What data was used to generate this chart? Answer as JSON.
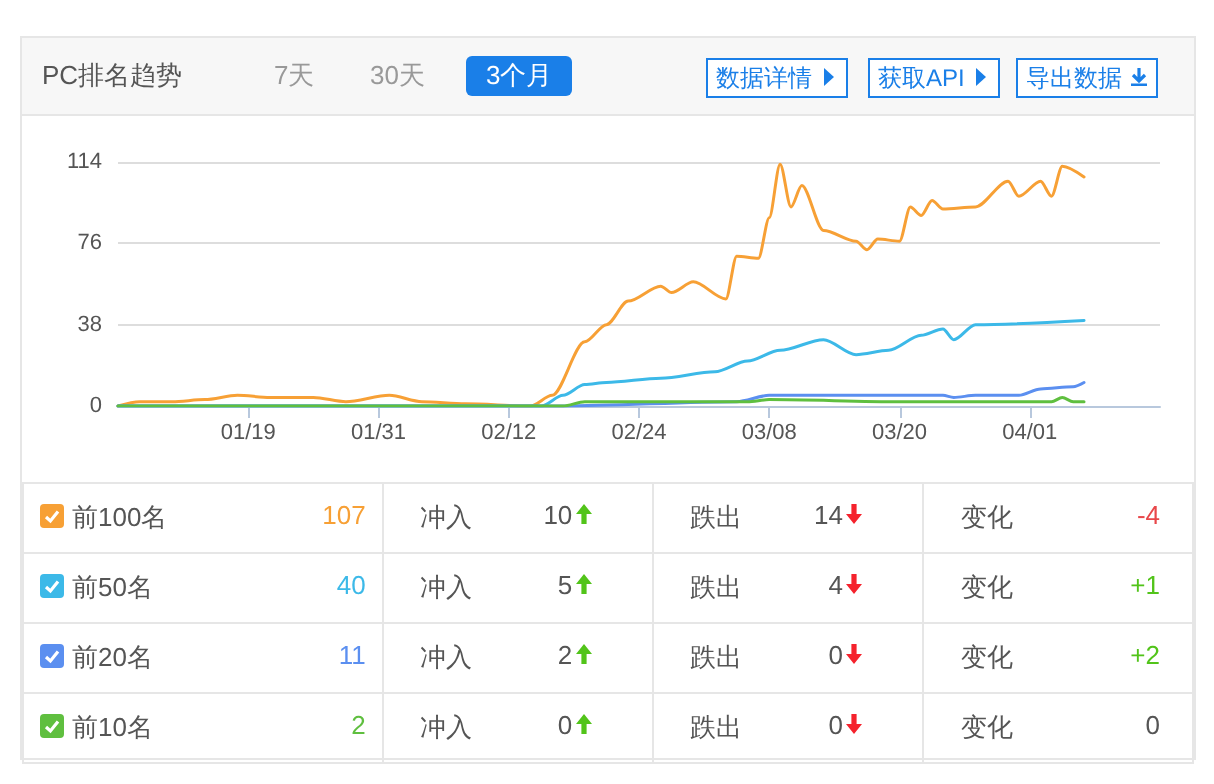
{
  "chart_data": {
    "type": "line",
    "title": "PC排名趋势",
    "xlim": [
      "--01-07",
      "--04-13"
    ],
    "xticks": [
      {
        "value": "--01-19",
        "label": "01/19"
      },
      {
        "value": "--01-31",
        "label": "01/31"
      },
      {
        "value": "--02-12",
        "label": "02/12"
      },
      {
        "value": "--02-24",
        "label": "02/24"
      },
      {
        "value": "--03-08",
        "label": "03/08"
      },
      {
        "value": "--03-20",
        "label": "03/20"
      },
      {
        "value": "--04-01",
        "label": "04/01"
      }
    ],
    "ylim": [
      0,
      114
    ],
    "yticks": [
      0,
      38,
      76,
      114
    ],
    "grid": "y",
    "legend": "bottom",
    "marker": "none",
    "line_style": "solid",
    "series": [
      {
        "name": "前100名",
        "color": "#f7a035",
        "x": [
          "--01-07",
          "--01-09",
          "--01-12",
          "--01-15",
          "--01-18",
          "--01-21",
          "--01-25",
          "--01-28",
          "--02-01",
          "--02-04",
          "--02-08",
          "--02-14",
          "--02-16",
          "--02-19",
          "--02-21",
          "--02-23",
          "--02-26",
          "--02-27",
          "--03-01",
          "--03-04",
          "--03-05",
          "--03-07",
          "--03-08",
          "--03-09",
          "--03-10",
          "--03-11",
          "--03-13",
          "--03-16",
          "--03-17",
          "--03-18",
          "--03-20",
          "--03-21",
          "--03-22",
          "--03-23",
          "--03-24",
          "--03-27",
          "--03-30",
          "--03-31",
          "--04-02",
          "--04-03",
          "--04-04",
          "--04-06"
        ],
        "values": [
          0,
          2,
          2,
          3,
          5,
          4,
          4,
          2,
          5,
          2,
          1,
          0,
          5,
          30,
          38,
          49,
          56,
          53,
          58,
          50,
          70,
          69,
          88,
          113,
          93,
          103,
          82,
          77,
          73,
          78,
          77,
          93,
          89,
          96,
          92,
          93,
          105,
          98,
          105,
          98,
          112,
          107
        ]
      },
      {
        "name": "前50名",
        "color": "#3cb9e8",
        "x": [
          "--01-07",
          "--02-15",
          "--02-17",
          "--02-19",
          "--02-21",
          "--02-26",
          "--03-03",
          "--03-06",
          "--03-09",
          "--03-13",
          "--03-16",
          "--03-19",
          "--03-22",
          "--03-24",
          "--03-25",
          "--03-27",
          "--04-06"
        ],
        "values": [
          0,
          0,
          5,
          10,
          11,
          13,
          16,
          21,
          26,
          31,
          24,
          26,
          33,
          36,
          31,
          38,
          40
        ]
      },
      {
        "name": "前20名",
        "color": "#5b8ff0",
        "x": [
          "--01-07",
          "--02-17",
          "--03-05",
          "--03-08",
          "--03-24",
          "--03-25",
          "--03-27",
          "--03-31",
          "--04-02",
          "--04-05",
          "--04-06"
        ],
        "values": [
          0,
          0,
          2,
          5,
          5,
          4,
          5,
          5,
          8,
          9,
          11
        ]
      },
      {
        "name": "前10名",
        "color": "#5fbf3f",
        "x": [
          "--01-07",
          "--02-17",
          "--02-19",
          "--03-06",
          "--03-08",
          "--03-20",
          "--04-03",
          "--04-04",
          "--04-05",
          "--04-06"
        ],
        "values": [
          0,
          0,
          2,
          2,
          3,
          2,
          2,
          4,
          2,
          2
        ]
      }
    ],
    "annotations": [
      "7天",
      "30天",
      "3个月",
      "数据详情",
      "获取API",
      "导出数据",
      "107",
      "冲入",
      "10",
      "跌出",
      "14",
      "变化",
      "-4",
      "40",
      "冲入",
      "5",
      "跌出",
      "4",
      "变化",
      "+1",
      "11",
      "冲入",
      "2",
      "跌出",
      "0",
      "变化",
      "+2",
      "2",
      "冲入",
      "0",
      "跌出",
      "0",
      "变化",
      "0"
    ]
  }
}
